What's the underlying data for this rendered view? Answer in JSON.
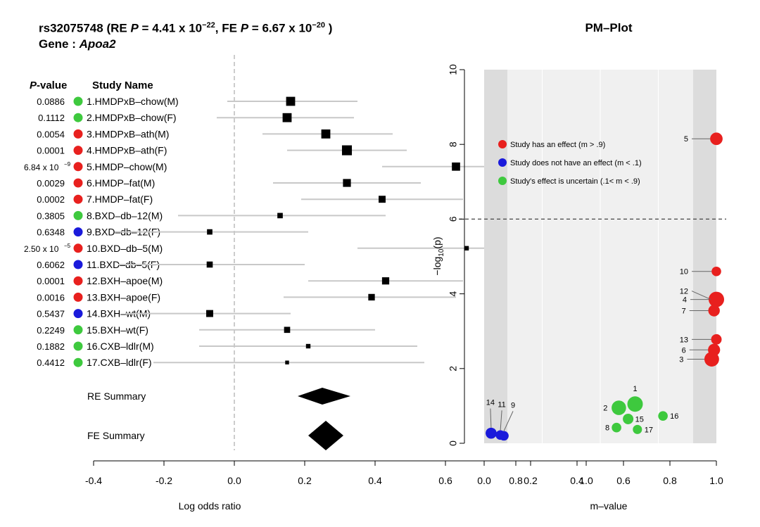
{
  "header": {
    "snp": "rs32075748",
    "re_label": "(RE",
    "p_symbol": "P",
    "eq": "=",
    "re_p_mantissa": "4.41 x 10",
    "re_p_exp": "−22",
    "fe_label": ",  FE",
    "fe_p_mantissa": "6.67 x 10",
    "fe_p_exp": "−20",
    "close_paren": ")",
    "gene_label": "Gene :",
    "gene_name": "Apoa2"
  },
  "colors": {
    "effect": "#e8201e",
    "no_effect": "#1a1adb",
    "uncertain": "#3ec93e",
    "box": "#000000",
    "ci_line": "#c8c8c8",
    "grey_band": "#dcdcdc",
    "plot_bg": "#f0f0f0"
  },
  "chart_data": [
    {
      "type": "forest",
      "column_headers": {
        "pvalue": "P",
        "pvalue_suffix": "-value",
        "study": "Study Name"
      },
      "xlabel": "Log odds ratio",
      "xlim": [
        -0.4,
        1.0
      ],
      "xticks": [
        "-0.4",
        "-0.2",
        "0.0",
        "0.2",
        "0.4",
        "0.6",
        "0.8",
        "1.0"
      ],
      "xtick_values": [
        -0.4,
        -0.2,
        0.0,
        0.2,
        0.4,
        0.6,
        0.8,
        1.0
      ],
      "reference_line": 0,
      "studies": [
        {
          "p": "0.0886",
          "name": "1.HMDPxB–chow(M)",
          "status": "uncertain",
          "est": 0.16,
          "lo": -0.02,
          "hi": 0.35,
          "wt": 0.8
        },
        {
          "p": "0.1112",
          "name": "2.HMDPxB–chow(F)",
          "status": "uncertain",
          "est": 0.15,
          "lo": -0.05,
          "hi": 0.34,
          "wt": 0.8
        },
        {
          "p": "0.0054",
          "name": "3.HMDPxB–ath(M)",
          "status": "effect",
          "est": 0.26,
          "lo": 0.08,
          "hi": 0.45,
          "wt": 0.8
        },
        {
          "p": "0.0001",
          "name": "4.HMDPxB–ath(F)",
          "status": "effect",
          "est": 0.32,
          "lo": 0.15,
          "hi": 0.49,
          "wt": 0.88
        },
        {
          "p": "6.84 x 10",
          "p_exp": "−9",
          "name": "5.HMDP–chow(M)",
          "status": "effect",
          "est": 0.63,
          "lo": 0.42,
          "hi": 0.84,
          "wt": 0.73
        },
        {
          "p": "0.0029",
          "name": "6.HMDP–fat(M)",
          "status": "effect",
          "est": 0.32,
          "lo": 0.11,
          "hi": 0.53,
          "wt": 0.7
        },
        {
          "p": "0.0002",
          "name": "7.HMDP–fat(F)",
          "status": "effect",
          "est": 0.42,
          "lo": 0.19,
          "hi": 0.65,
          "wt": 0.62
        },
        {
          "p": "0.3805",
          "name": "8.BXD–db–12(M)",
          "status": "uncertain",
          "est": 0.13,
          "lo": -0.16,
          "hi": 0.43,
          "wt": 0.48
        },
        {
          "p": "0.6348",
          "name": "9.BXD–db–12(F)",
          "status": "no_effect",
          "est": -0.07,
          "lo": -0.34,
          "hi": 0.21,
          "wt": 0.48
        },
        {
          "p": "2.50 x 10",
          "p_exp": "−5",
          "name": "10.BXD–db–5(M)",
          "status": "effect",
          "est": 0.66,
          "lo": 0.35,
          "hi": 0.96,
          "wt": 0.4
        },
        {
          "p": "0.6062",
          "name": "11.BXD–db–5(F)",
          "status": "no_effect",
          "est": -0.07,
          "lo": -0.33,
          "hi": 0.2,
          "wt": 0.54
        },
        {
          "p": "0.0001",
          "name": "12.BXH–apoe(M)",
          "status": "effect",
          "est": 0.43,
          "lo": 0.21,
          "hi": 0.65,
          "wt": 0.64
        },
        {
          "p": "0.0016",
          "name": "13.BXH–apoe(F)",
          "status": "effect",
          "est": 0.39,
          "lo": 0.14,
          "hi": 0.63,
          "wt": 0.58
        },
        {
          "p": "0.5437",
          "name": "14.BXH–wt(M)",
          "status": "no_effect",
          "est": -0.07,
          "lo": -0.31,
          "hi": 0.16,
          "wt": 0.62
        },
        {
          "p": "0.2249",
          "name": "15.BXH–wt(F)",
          "status": "uncertain",
          "est": 0.15,
          "lo": -0.1,
          "hi": 0.4,
          "wt": 0.54
        },
        {
          "p": "0.1882",
          "name": "16.CXB–ldlr(M)",
          "status": "uncertain",
          "est": 0.21,
          "lo": -0.1,
          "hi": 0.52,
          "wt": 0.4
        },
        {
          "p": "0.4412",
          "name": "17.CXB–ldlr(F)",
          "status": "uncertain",
          "est": 0.15,
          "lo": -0.23,
          "hi": 0.54,
          "wt": 0.34
        }
      ],
      "summaries": [
        {
          "label": "RE Summary",
          "est": 0.25,
          "lo": 0.18,
          "hi": 0.33
        },
        {
          "label": "FE Summary",
          "est": 0.26,
          "lo": 0.21,
          "hi": 0.31
        }
      ]
    },
    {
      "type": "scatter",
      "title": "PM–Plot",
      "xlabel": "m–value",
      "ylabel": "−log10(p)",
      "ylabel_main": "−log",
      "ylabel_sub": "10",
      "ylabel_tail": "(p)",
      "xlim": [
        0,
        1
      ],
      "ylim": [
        0,
        10
      ],
      "xticks": [
        "0.0",
        "0.2",
        "0.4",
        "0.6",
        "0.8",
        "1.0"
      ],
      "xtick_values": [
        0,
        0.2,
        0.4,
        0.6,
        0.8,
        1.0
      ],
      "yticks": [
        "0",
        "2",
        "4",
        "6",
        "8",
        "10"
      ],
      "ytick_values": [
        0,
        2,
        4,
        6,
        8,
        10
      ],
      "bands": [
        [
          0,
          0.1
        ],
        [
          0.9,
          1.0
        ]
      ],
      "threshold": 6,
      "legend": [
        {
          "label": "Study has an effect (m > .9)",
          "status": "effect"
        },
        {
          "label": "Study does not have an effect (m < .1)",
          "status": "no_effect"
        },
        {
          "label": "Study's effect is uncertain (.1< m < .9)",
          "status": "uncertain"
        }
      ],
      "points": [
        {
          "id": "1",
          "m": 0.65,
          "y": 1.05,
          "status": "uncertain",
          "size": 1.0
        },
        {
          "id": "2",
          "m": 0.58,
          "y": 0.95,
          "status": "uncertain",
          "size": 0.9
        },
        {
          "id": "3",
          "m": 0.98,
          "y": 2.25,
          "status": "effect",
          "size": 0.92
        },
        {
          "id": "4",
          "m": 1.0,
          "y": 3.85,
          "status": "effect",
          "size": 1.0
        },
        {
          "id": "5",
          "m": 1.0,
          "y": 8.15,
          "status": "effect",
          "size": 0.7
        },
        {
          "id": "6",
          "m": 0.99,
          "y": 2.5,
          "status": "effect",
          "size": 0.66
        },
        {
          "id": "7",
          "m": 0.99,
          "y": 3.55,
          "status": "effect",
          "size": 0.6
        },
        {
          "id": "8",
          "m": 0.57,
          "y": 0.42,
          "status": "uncertain",
          "size": 0.4
        },
        {
          "id": "9",
          "m": 0.085,
          "y": 0.2,
          "status": "no_effect",
          "size": 0.4
        },
        {
          "id": "10",
          "m": 1.0,
          "y": 4.6,
          "status": "effect",
          "size": 0.4
        },
        {
          "id": "11",
          "m": 0.07,
          "y": 0.22,
          "status": "no_effect",
          "size": 0.4
        },
        {
          "id": "12",
          "m": 1.0,
          "y": 3.85,
          "status": "effect",
          "size": 0.55
        },
        {
          "id": "13",
          "m": 1.0,
          "y": 2.78,
          "status": "effect",
          "size": 0.5
        },
        {
          "id": "14",
          "m": 0.03,
          "y": 0.27,
          "status": "no_effect",
          "size": 0.55
        },
        {
          "id": "15",
          "m": 0.62,
          "y": 0.65,
          "status": "uncertain",
          "size": 0.5
        },
        {
          "id": "16",
          "m": 0.77,
          "y": 0.73,
          "status": "uncertain",
          "size": 0.4
        },
        {
          "id": "17",
          "m": 0.66,
          "y": 0.37,
          "status": "uncertain",
          "size": 0.36
        }
      ]
    }
  ]
}
